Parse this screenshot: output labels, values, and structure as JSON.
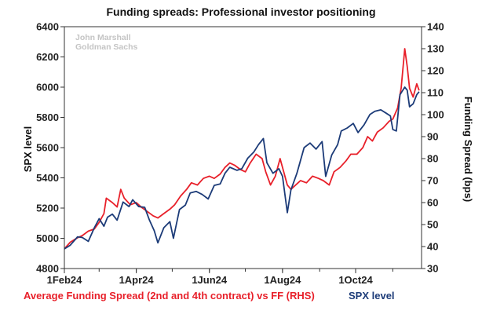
{
  "chart_data": {
    "type": "line",
    "title": "Funding spreads: Professional investor positioning",
    "watermark": [
      "John Marshall",
      "Goldman Sachs"
    ],
    "ylabel_left": "SPX level",
    "ylabel_right": "Funding Spread (bps)",
    "ylim_left": [
      4800,
      6400
    ],
    "ylim_right": [
      30,
      140
    ],
    "yticks_left": [
      "4800",
      "5000",
      "5200",
      "5400",
      "5600",
      "5800",
      "6000",
      "6200",
      "6400"
    ],
    "yticks_right": [
      "30",
      "40",
      "50",
      "60",
      "70",
      "80",
      "90",
      "100",
      "110",
      "120",
      "130",
      "140"
    ],
    "xticks": [
      "1Feb24",
      "1Apr24",
      "1Jun24",
      "1Aug24",
      "1Oct24"
    ],
    "xrange": [
      "2024-02-01",
      "2024-11-25"
    ],
    "grid": false,
    "series": [
      {
        "name": "Average Funding Spread (2nd and 4th contract) vs FF (RHS)",
        "axis": "right",
        "color": "#e8202a",
        "points": [
          [
            "2024-02-01",
            39
          ],
          [
            "2024-02-06",
            42
          ],
          [
            "2024-02-12",
            44
          ],
          [
            "2024-02-16",
            45
          ],
          [
            "2024-02-21",
            47
          ],
          [
            "2024-02-26",
            48
          ],
          [
            "2024-03-01",
            51
          ],
          [
            "2024-03-05",
            55
          ],
          [
            "2024-03-07",
            62
          ],
          [
            "2024-03-12",
            60
          ],
          [
            "2024-03-16",
            58
          ],
          [
            "2024-03-19",
            66
          ],
          [
            "2024-03-22",
            62
          ],
          [
            "2024-03-27",
            59
          ],
          [
            "2024-04-01",
            60
          ],
          [
            "2024-04-05",
            58
          ],
          [
            "2024-04-10",
            56
          ],
          [
            "2024-04-15",
            54
          ],
          [
            "2024-04-19",
            53
          ],
          [
            "2024-04-24",
            55
          ],
          [
            "2024-04-29",
            57
          ],
          [
            "2024-05-03",
            59
          ],
          [
            "2024-05-08",
            63
          ],
          [
            "2024-05-13",
            66
          ],
          [
            "2024-05-17",
            69
          ],
          [
            "2024-05-22",
            68
          ],
          [
            "2024-05-27",
            71
          ],
          [
            "2024-06-01",
            72
          ],
          [
            "2024-06-05",
            71
          ],
          [
            "2024-06-10",
            73
          ],
          [
            "2024-06-14",
            76
          ],
          [
            "2024-06-18",
            78
          ],
          [
            "2024-06-22",
            77
          ],
          [
            "2024-06-27",
            75
          ],
          [
            "2024-07-01",
            74
          ],
          [
            "2024-07-05",
            78
          ],
          [
            "2024-07-10",
            82
          ],
          [
            "2024-07-15",
            80
          ],
          [
            "2024-07-18",
            74
          ],
          [
            "2024-07-22",
            68
          ],
          [
            "2024-07-26",
            72
          ],
          [
            "2024-07-30",
            80
          ],
          [
            "2024-08-02",
            74
          ],
          [
            "2024-08-05",
            68
          ],
          [
            "2024-08-08",
            66
          ],
          [
            "2024-08-12",
            68
          ],
          [
            "2024-08-16",
            70
          ],
          [
            "2024-08-21",
            69
          ],
          [
            "2024-08-26",
            72
          ],
          [
            "2024-08-31",
            71
          ],
          [
            "2024-09-04",
            70
          ],
          [
            "2024-09-09",
            68
          ],
          [
            "2024-09-13",
            74
          ],
          [
            "2024-09-18",
            76
          ],
          [
            "2024-09-23",
            79
          ],
          [
            "2024-09-27",
            82
          ],
          [
            "2024-10-02",
            82
          ],
          [
            "2024-10-07",
            85
          ],
          [
            "2024-10-11",
            90
          ],
          [
            "2024-10-15",
            88
          ],
          [
            "2024-10-19",
            92
          ],
          [
            "2024-10-24",
            94
          ],
          [
            "2024-10-29",
            97
          ],
          [
            "2024-11-01",
            98
          ],
          [
            "2024-11-05",
            103
          ],
          [
            "2024-11-08",
            112
          ],
          [
            "2024-11-11",
            130
          ],
          [
            "2024-11-13",
            122
          ],
          [
            "2024-11-15",
            112
          ],
          [
            "2024-11-18",
            108
          ],
          [
            "2024-11-21",
            114
          ],
          [
            "2024-11-23",
            111
          ]
        ]
      },
      {
        "name": "SPX level",
        "axis": "left",
        "color": "#1c3b78",
        "points": [
          [
            "2024-02-01",
            4930
          ],
          [
            "2024-02-06",
            4955
          ],
          [
            "2024-02-12",
            5010
          ],
          [
            "2024-02-16",
            5005
          ],
          [
            "2024-02-21",
            4980
          ],
          [
            "2024-02-26",
            5070
          ],
          [
            "2024-03-01",
            5130
          ],
          [
            "2024-03-05",
            5080
          ],
          [
            "2024-03-08",
            5140
          ],
          [
            "2024-03-12",
            5160
          ],
          [
            "2024-03-16",
            5120
          ],
          [
            "2024-03-21",
            5240
          ],
          [
            "2024-03-26",
            5210
          ],
          [
            "2024-03-29",
            5255
          ],
          [
            "2024-04-03",
            5210
          ],
          [
            "2024-04-08",
            5205
          ],
          [
            "2024-04-12",
            5120
          ],
          [
            "2024-04-16",
            5050
          ],
          [
            "2024-04-19",
            4970
          ],
          [
            "2024-04-24",
            5070
          ],
          [
            "2024-04-29",
            5110
          ],
          [
            "2024-05-02",
            5000
          ],
          [
            "2024-05-07",
            5190
          ],
          [
            "2024-05-12",
            5220
          ],
          [
            "2024-05-16",
            5300
          ],
          [
            "2024-05-21",
            5310
          ],
          [
            "2024-05-26",
            5290
          ],
          [
            "2024-05-31",
            5260
          ],
          [
            "2024-06-05",
            5350
          ],
          [
            "2024-06-10",
            5360
          ],
          [
            "2024-06-14",
            5430
          ],
          [
            "2024-06-18",
            5470
          ],
          [
            "2024-06-24",
            5450
          ],
          [
            "2024-06-28",
            5460
          ],
          [
            "2024-07-03",
            5530
          ],
          [
            "2024-07-08",
            5570
          ],
          [
            "2024-07-12",
            5620
          ],
          [
            "2024-07-16",
            5660
          ],
          [
            "2024-07-19",
            5500
          ],
          [
            "2024-07-24",
            5430
          ],
          [
            "2024-07-29",
            5460
          ],
          [
            "2024-08-01",
            5410
          ],
          [
            "2024-08-05",
            5170
          ],
          [
            "2024-08-08",
            5320
          ],
          [
            "2024-08-13",
            5430
          ],
          [
            "2024-08-19",
            5600
          ],
          [
            "2024-08-24",
            5630
          ],
          [
            "2024-08-29",
            5590
          ],
          [
            "2024-09-03",
            5640
          ],
          [
            "2024-09-06",
            5410
          ],
          [
            "2024-09-11",
            5550
          ],
          [
            "2024-09-16",
            5620
          ],
          [
            "2024-09-19",
            5710
          ],
          [
            "2024-09-24",
            5730
          ],
          [
            "2024-09-29",
            5760
          ],
          [
            "2024-10-03",
            5700
          ],
          [
            "2024-10-08",
            5750
          ],
          [
            "2024-10-13",
            5820
          ],
          [
            "2024-10-17",
            5840
          ],
          [
            "2024-10-22",
            5850
          ],
          [
            "2024-10-26",
            5830
          ],
          [
            "2024-10-30",
            5810
          ],
          [
            "2024-11-01",
            5720
          ],
          [
            "2024-11-04",
            5710
          ],
          [
            "2024-11-07",
            5950
          ],
          [
            "2024-11-11",
            6000
          ],
          [
            "2024-11-13",
            5980
          ],
          [
            "2024-11-15",
            5870
          ],
          [
            "2024-11-18",
            5890
          ],
          [
            "2024-11-21",
            5950
          ],
          [
            "2024-11-23",
            5970
          ]
        ]
      }
    ]
  }
}
